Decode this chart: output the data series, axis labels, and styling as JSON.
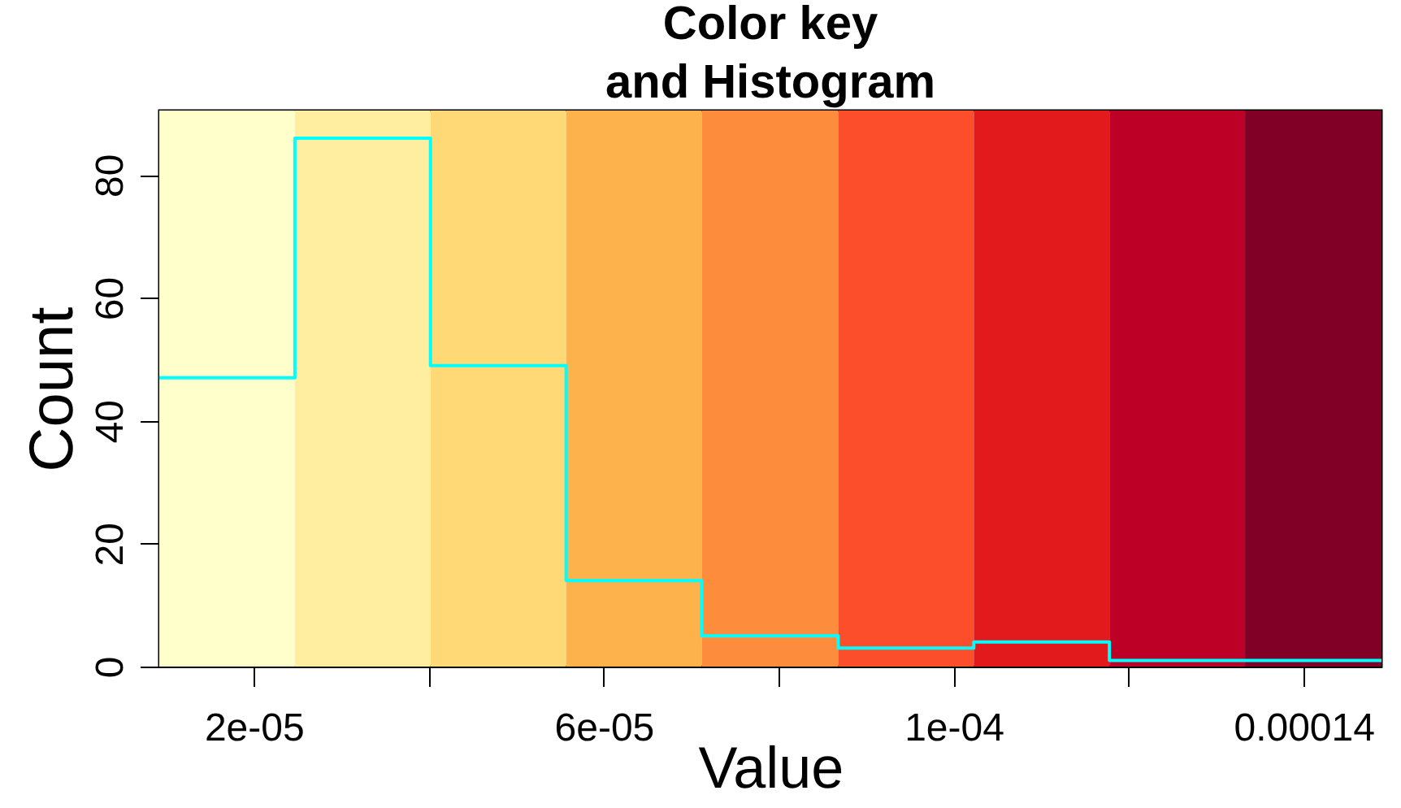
{
  "chart_data": {
    "type": "histogram",
    "title": "Color key\nand Histogram",
    "xlabel": "Value",
    "ylabel": "Count",
    "bins": [
      9.2e-06,
      2.47e-05,
      4.02e-05,
      5.57e-05,
      7.12e-05,
      8.68e-05,
      0.0001023,
      0.0001178,
      0.0001333,
      0.0001489
    ],
    "values": [
      47,
      86,
      49,
      14,
      5,
      3,
      4,
      1,
      1
    ],
    "color": "#00ffff",
    "xlim": [
      9.2e-06,
      0.0001489
    ],
    "xticks": [
      {
        "value": 2e-05,
        "label": "2e-05"
      },
      {
        "value": 4e-05,
        "label": null
      },
      {
        "value": 6e-05,
        "label": "6e-05"
      },
      {
        "value": 8e-05,
        "label": null
      },
      {
        "value": 0.0001,
        "label": "1e-04"
      },
      {
        "value": 0.00012,
        "label": null
      },
      {
        "value": 0.00014,
        "label": "0.00014"
      }
    ],
    "ylim": [
      0,
      90.5
    ],
    "yticks": [
      0,
      20,
      40,
      60,
      80
    ],
    "grid": false,
    "bands": [
      {
        "axis": "x",
        "from": 9.2e-06,
        "to": 2.47e-05,
        "color": "#ffffcc"
      },
      {
        "axis": "x",
        "from": 2.47e-05,
        "to": 4.02e-05,
        "color": "#ffeda0"
      },
      {
        "axis": "x",
        "from": 4.02e-05,
        "to": 5.57e-05,
        "color": "#fed976"
      },
      {
        "axis": "x",
        "from": 5.57e-05,
        "to": 7.12e-05,
        "color": "#feb24c"
      },
      {
        "axis": "x",
        "from": 7.12e-05,
        "to": 8.68e-05,
        "color": "#fd8d3c"
      },
      {
        "axis": "x",
        "from": 8.68e-05,
        "to": 0.0001023,
        "color": "#fc4e2a"
      },
      {
        "axis": "x",
        "from": 0.0001023,
        "to": 0.0001178,
        "color": "#e31a1c"
      },
      {
        "axis": "x",
        "from": 0.0001178,
        "to": 0.0001333,
        "color": "#bd0026"
      },
      {
        "axis": "x",
        "from": 0.0001333,
        "to": 0.0001489,
        "color": "#800026"
      }
    ]
  }
}
